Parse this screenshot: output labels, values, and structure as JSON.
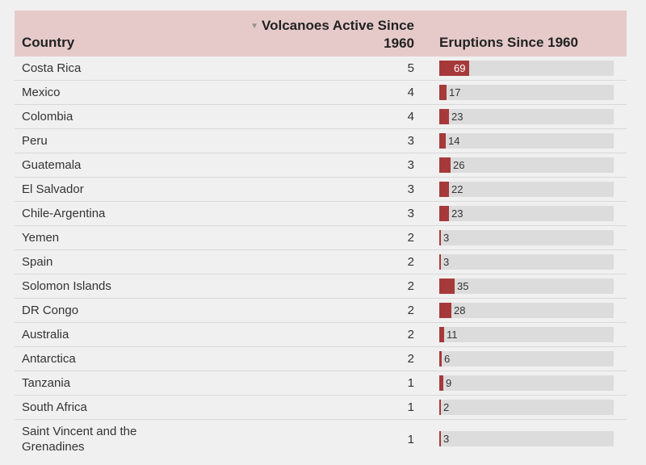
{
  "chart_data": {
    "type": "table",
    "columns": [
      "Country",
      "Volcanoes Active Since 1960",
      "Eruptions Since 1960"
    ],
    "sort": {
      "column": "Volcanoes Active Since 1960",
      "direction": "descending"
    },
    "bar_max": 69,
    "colors": {
      "header_bg": "#e6caca",
      "bar": "#a63a3a",
      "bar_track": "#dcdcdc"
    },
    "rows": [
      {
        "country": "Costa Rica",
        "volcanoes": 5,
        "eruptions": 69
      },
      {
        "country": "Mexico",
        "volcanoes": 4,
        "eruptions": 17
      },
      {
        "country": "Colombia",
        "volcanoes": 4,
        "eruptions": 23
      },
      {
        "country": "Peru",
        "volcanoes": 3,
        "eruptions": 14
      },
      {
        "country": "Guatemala",
        "volcanoes": 3,
        "eruptions": 26
      },
      {
        "country": "El Salvador",
        "volcanoes": 3,
        "eruptions": 22
      },
      {
        "country": "Chile-Argentina",
        "volcanoes": 3,
        "eruptions": 23
      },
      {
        "country": "Yemen",
        "volcanoes": 2,
        "eruptions": 3
      },
      {
        "country": "Spain",
        "volcanoes": 2,
        "eruptions": 3
      },
      {
        "country": "Solomon Islands",
        "volcanoes": 2,
        "eruptions": 35
      },
      {
        "country": "DR Congo",
        "volcanoes": 2,
        "eruptions": 28
      },
      {
        "country": "Australia",
        "volcanoes": 2,
        "eruptions": 11
      },
      {
        "country": "Antarctica",
        "volcanoes": 2,
        "eruptions": 6
      },
      {
        "country": "Tanzania",
        "volcanoes": 1,
        "eruptions": 9
      },
      {
        "country": "South Africa",
        "volcanoes": 1,
        "eruptions": 2
      },
      {
        "country": "Saint Vincent and the Grenadines",
        "volcanoes": 1,
        "eruptions": 3
      }
    ]
  }
}
